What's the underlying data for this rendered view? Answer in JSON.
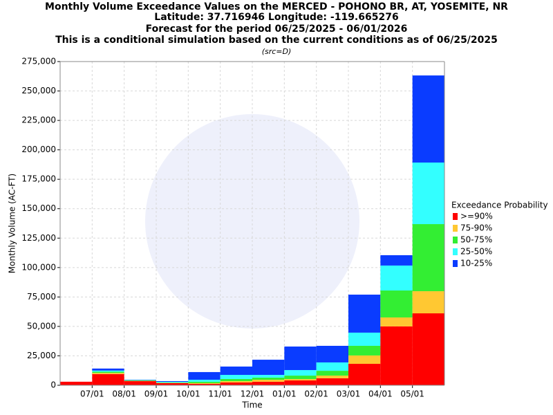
{
  "chart_data": {
    "type": "stacked_bar",
    "title": [
      "Monthly Volume Exceedance Values on the MERCED - POHONO BR, AT, YOSEMITE, NR",
      "Latitude: 37.716946 Longitude: -119.665276",
      "Forecast for the period 06/25/2025 - 06/01/2026",
      "This is a conditional simulation based on the current conditions as of 06/25/2025"
    ],
    "subtitle": "(src=D)",
    "x_label": "Time",
    "y_label": "Monthly Volume (AC-FT)",
    "legend_title": "Exceedance Probability",
    "categories": [
      null,
      "07/01",
      "08/01",
      "09/01",
      "10/01",
      "11/01",
      "12/01",
      "01/01",
      "02/01",
      "03/01",
      "04/01",
      "05/01"
    ],
    "series": [
      {
        "name": ">=90%",
        "color": "#ff0000",
        "values": [
          3000,
          9500,
          3500,
          1800,
          1200,
          2400,
          3000,
          4100,
          5900,
          18200,
          50000,
          61100
        ]
      },
      {
        "name": "75-90%",
        "color": "#ffc832",
        "values": [
          0,
          1000,
          300,
          200,
          600,
          1100,
          1700,
          1200,
          2300,
          7100,
          7600,
          18800
        ]
      },
      {
        "name": "50-75%",
        "color": "#33ee33",
        "values": [
          0,
          1000,
          300,
          300,
          1200,
          1800,
          1800,
          2900,
          4100,
          8200,
          22900,
          57000
        ]
      },
      {
        "name": "25-50%",
        "color": "#33ffff",
        "values": [
          0,
          1000,
          300,
          600,
          1700,
          3500,
          2300,
          4700,
          7100,
          11200,
          21200,
          52300
        ]
      },
      {
        "name": "10-25%",
        "color": "#0a3cff",
        "values": [
          0,
          1700,
          300,
          600,
          6500,
          7100,
          12900,
          20000,
          14100,
          32300,
          8800,
          74000
        ]
      }
    ],
    "ylim": [
      0,
      275000
    ],
    "yticks": [
      0,
      {
        "value": 25000,
        "label": "25,000"
      },
      {
        "value": 50000,
        "label": "50,000"
      },
      {
        "value": 75000,
        "label": "75,000"
      },
      {
        "value": 100000,
        "label": "100,000"
      },
      {
        "value": 125000,
        "label": "125,000"
      },
      {
        "value": 150000,
        "label": "150,000"
      },
      {
        "value": 175000,
        "label": "175,000"
      },
      {
        "value": 200000,
        "label": "200,000"
      },
      {
        "value": 225000,
        "label": "225,000"
      },
      {
        "value": 250000,
        "label": "250,000"
      },
      {
        "value": 275000,
        "label": "275,000"
      }
    ],
    "grid": true,
    "legend": "right"
  }
}
